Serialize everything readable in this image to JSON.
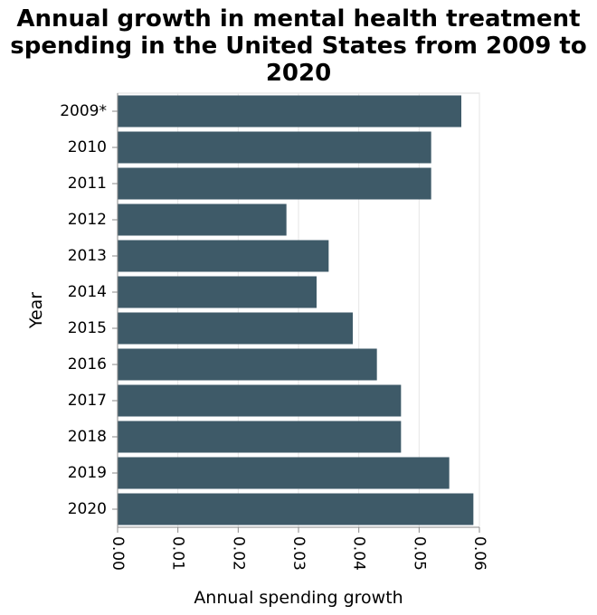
{
  "title_lines": [
    "Annual growth in mental health treatment",
    "spending in the United States from 2009 to",
    "2020"
  ],
  "chart_data": {
    "type": "bar",
    "orientation": "horizontal",
    "title": "Annual growth in mental health treatment spending in the United States from 2009 to 2020",
    "xlabel": "Annual spending growth",
    "ylabel": "Year",
    "categories": [
      "2009*",
      "2010",
      "2011",
      "2012",
      "2013",
      "2014",
      "2015",
      "2016",
      "2017",
      "2018",
      "2019",
      "2020"
    ],
    "values": [
      0.057,
      0.052,
      0.052,
      0.028,
      0.035,
      0.033,
      0.039,
      0.043,
      0.047,
      0.047,
      0.055,
      0.059
    ],
    "xlim": [
      0,
      0.06
    ],
    "xticks": [
      "0.00",
      "0.01",
      "0.02",
      "0.03",
      "0.04",
      "0.05",
      "0.06"
    ],
    "grid": true,
    "bar_color": "#3e5a68"
  }
}
